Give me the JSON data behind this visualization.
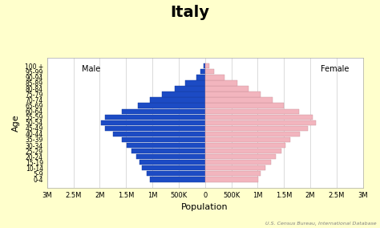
{
  "title": "Italy",
  "xlabel": "Population",
  "ylabel": "Age",
  "male_label": "Male",
  "female_label": "Female",
  "source": "U.S. Census Bureau, International Database",
  "age_groups": [
    "0-4",
    "5-9",
    "10-14",
    "15-19",
    "20-24",
    "25-29",
    "30-34",
    "35-39",
    "40-44",
    "45-49",
    "50-54",
    "55-59",
    "60-64",
    "65-69",
    "70-74",
    "75-79",
    "80-84",
    "85-89",
    "90-94",
    "95-99",
    "100 +"
  ],
  "male": [
    1050000,
    1100000,
    1200000,
    1250000,
    1300000,
    1400000,
    1480000,
    1580000,
    1750000,
    1900000,
    1980000,
    1900000,
    1580000,
    1280000,
    1050000,
    820000,
    570000,
    370000,
    170000,
    80000,
    30000
  ],
  "female": [
    1010000,
    1060000,
    1150000,
    1260000,
    1340000,
    1450000,
    1530000,
    1620000,
    1800000,
    1950000,
    2100000,
    2050000,
    1780000,
    1500000,
    1280000,
    1050000,
    830000,
    620000,
    370000,
    180000,
    80000
  ],
  "male_color": "#1c4bc4",
  "female_color": "#f2b5be",
  "male_edge": "#163a9a",
  "female_edge": "#c89098",
  "background_outer": "#ffffcc",
  "background_inner": "#ffffff",
  "xlim": 3000000,
  "xtick_positions": [
    -3000000,
    -2500000,
    -2000000,
    -1500000,
    -1000000,
    -500000,
    0,
    500000,
    1000000,
    1500000,
    2000000,
    2500000,
    3000000
  ],
  "xtick_labels": [
    "3M",
    "2.5M",
    "2M",
    "1.5M",
    "1M",
    "500K",
    "0",
    "500K",
    "1M",
    "1.5M",
    "2M",
    "2.5M",
    "3M"
  ],
  "title_fontsize": 14,
  "ytick_fontsize": 5.5,
  "xtick_fontsize": 6,
  "axis_label_fontsize": 8,
  "annotation_fontsize": 7
}
